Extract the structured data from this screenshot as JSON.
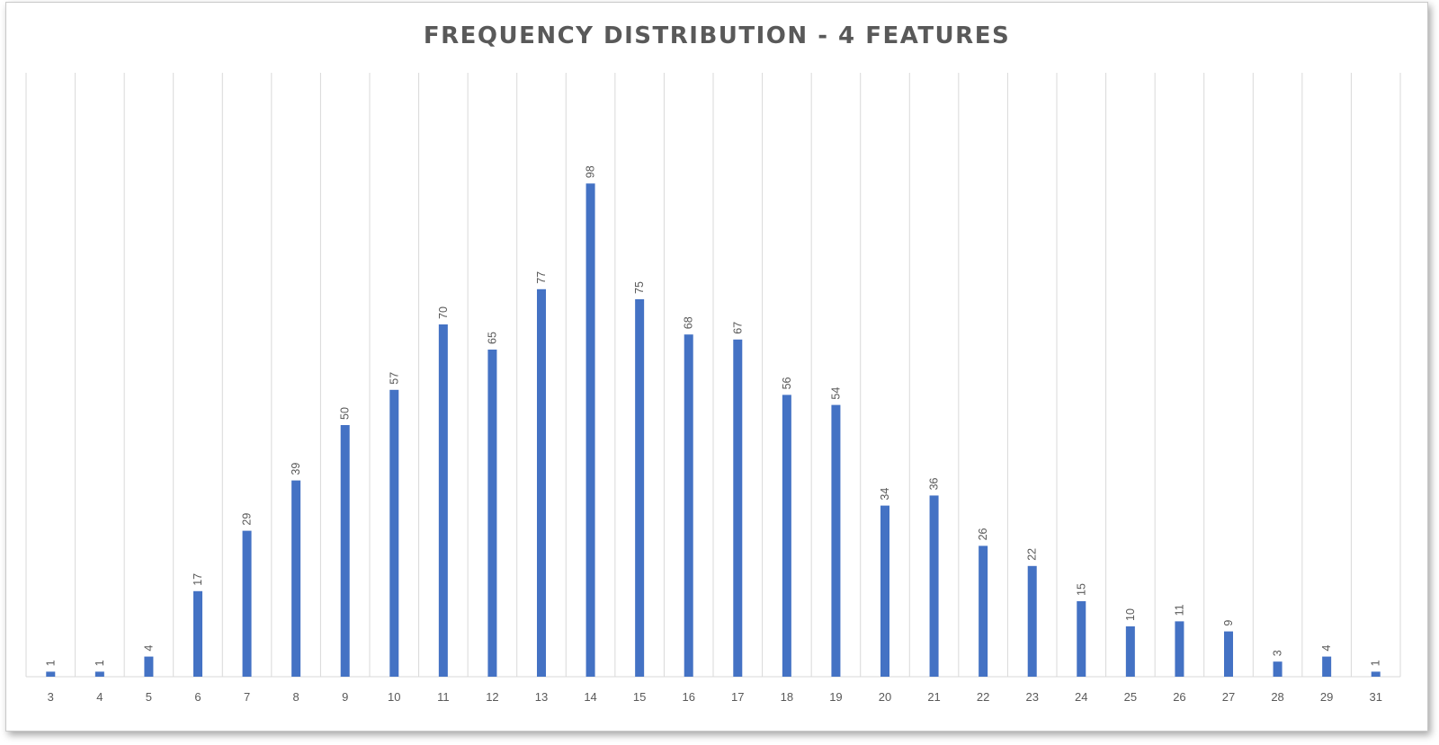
{
  "chart_data": {
    "type": "bar",
    "title": "FREQUENCY DISTRIBUTION - 4 FEATURES",
    "categories": [
      "3",
      "4",
      "5",
      "6",
      "7",
      "8",
      "9",
      "10",
      "11",
      "12",
      "13",
      "14",
      "15",
      "16",
      "17",
      "18",
      "19",
      "20",
      "21",
      "22",
      "23",
      "24",
      "25",
      "26",
      "27",
      "28",
      "29",
      "31"
    ],
    "values": [
      1,
      1,
      4,
      17,
      29,
      39,
      50,
      57,
      70,
      65,
      77,
      98,
      75,
      68,
      67,
      56,
      54,
      34,
      36,
      26,
      22,
      15,
      10,
      11,
      9,
      3,
      4,
      1
    ],
    "xlabel": "",
    "ylabel": "",
    "ylim": [
      0,
      120
    ],
    "grid": "vertical",
    "legend": "none",
    "bar_color": "#4472C4",
    "grid_color": "#d9d9d9",
    "data_labels": "rotated above bars"
  }
}
